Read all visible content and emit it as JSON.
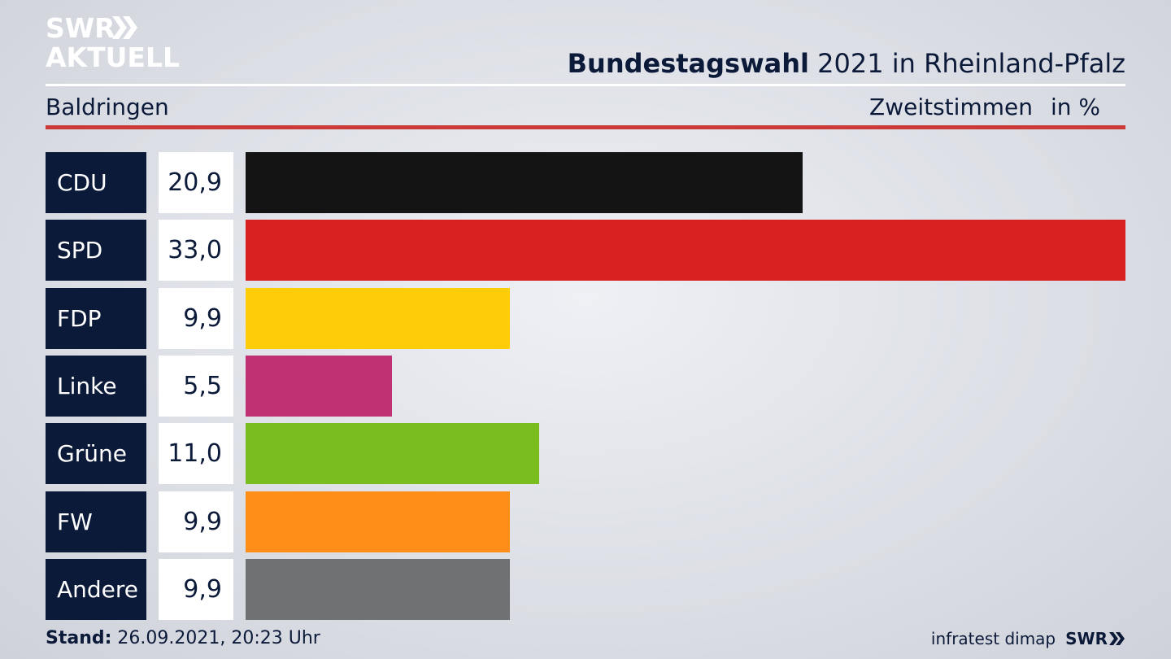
{
  "logo": {
    "line1": "SWR",
    "line2": "AKTUELL"
  },
  "header": {
    "title_bold": "Bundestagswahl",
    "title_rest": " 2021 in Rheinland-Pfalz",
    "region": "Baldringen",
    "measure": "Zweitstimmen",
    "unit": "in %"
  },
  "chart_data": {
    "type": "bar",
    "orientation": "horizontal",
    "categories": [
      "CDU",
      "SPD",
      "FDP",
      "Linke",
      "Grüne",
      "FW",
      "Andere"
    ],
    "values": [
      20.9,
      33.0,
      9.9,
      5.5,
      11.0,
      9.9,
      9.9
    ],
    "value_labels": [
      "20,9",
      "33,0",
      "9,9",
      "5,5",
      "11,0",
      "9,9",
      "9,9"
    ],
    "colors": [
      "#141414",
      "#d7201f",
      "#fecd0a",
      "#bf3172",
      "#79bd1e",
      "#fe8e17",
      "#707173"
    ],
    "title": "Bundestagswahl 2021 in Rheinland-Pfalz",
    "xlim": [
      0,
      33.0
    ],
    "grid": false,
    "legend": "none"
  },
  "footer": {
    "stand_label": "Stand:",
    "stand_value": " 26.09.2021, 20:23 Uhr",
    "source": "infratest dimap",
    "brand": "SWR"
  }
}
